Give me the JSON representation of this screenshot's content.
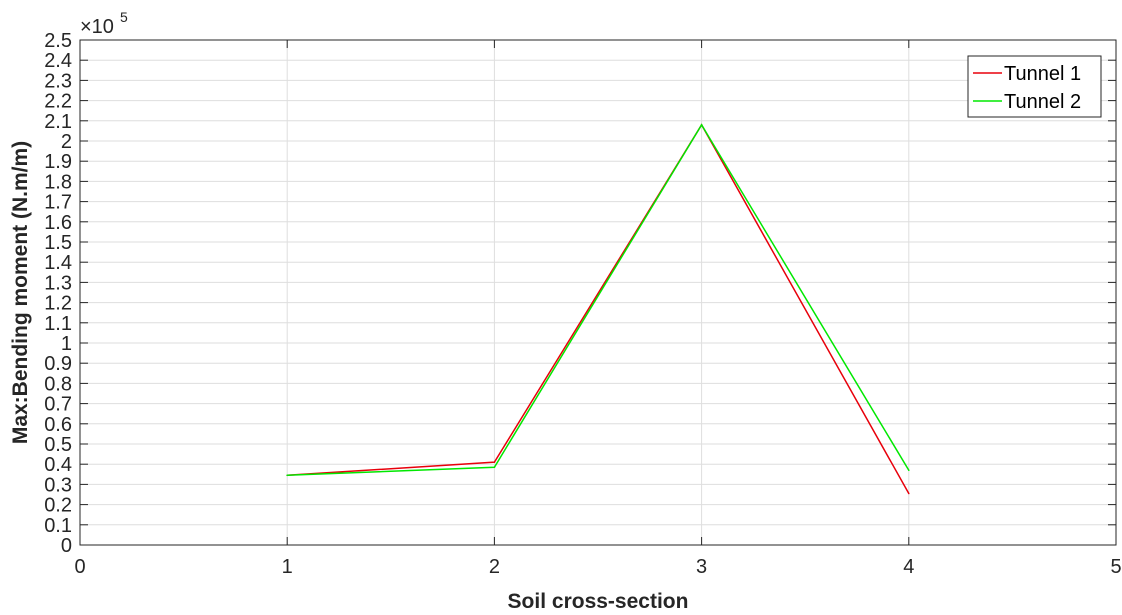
{
  "chart_data": {
    "type": "line",
    "xlabel": "Soil cross-section",
    "ylabel": "Max:Bending moment (N.m/m)",
    "y_exponent_label": "×10",
    "y_exponent_power": "5",
    "xlim": [
      0,
      5
    ],
    "ylim": [
      0,
      2.5
    ],
    "y_scale_factor": 100000,
    "x_ticks": [
      0,
      1,
      2,
      3,
      4,
      5
    ],
    "x_tick_labels": [
      "0",
      "1",
      "2",
      "3",
      "4",
      "5"
    ],
    "y_ticks": [
      0,
      0.1,
      0.2,
      0.3,
      0.4,
      0.5,
      0.6,
      0.7,
      0.8,
      0.9,
      1,
      1.1,
      1.2,
      1.3,
      1.4,
      1.5,
      1.6,
      1.7,
      1.8,
      1.9,
      2,
      2.1,
      2.2,
      2.3,
      2.4,
      2.5
    ],
    "y_tick_labels": [
      "0",
      "0.1",
      "0.2",
      "0.3",
      "0.4",
      "0.5",
      "0.6",
      "0.7",
      "0.8",
      "0.9",
      "1",
      "1.1",
      "1.2",
      "1.3",
      "1.4",
      "1.5",
      "1.6",
      "1.7",
      "1.8",
      "1.9",
      "2",
      "2.1",
      "2.2",
      "2.3",
      "2.4",
      "2.5"
    ],
    "grid": true,
    "legend_position": "top-right",
    "series": [
      {
        "name": "Tunnel 1",
        "color": "#e8000b",
        "x": [
          1,
          2,
          3,
          4
        ],
        "y": [
          0.345,
          0.41,
          2.08,
          0.255
        ]
      },
      {
        "name": "Tunnel 2",
        "color": "#00e800",
        "x": [
          1,
          2,
          3,
          4
        ],
        "y": [
          0.345,
          0.385,
          2.08,
          0.37
        ]
      }
    ]
  }
}
